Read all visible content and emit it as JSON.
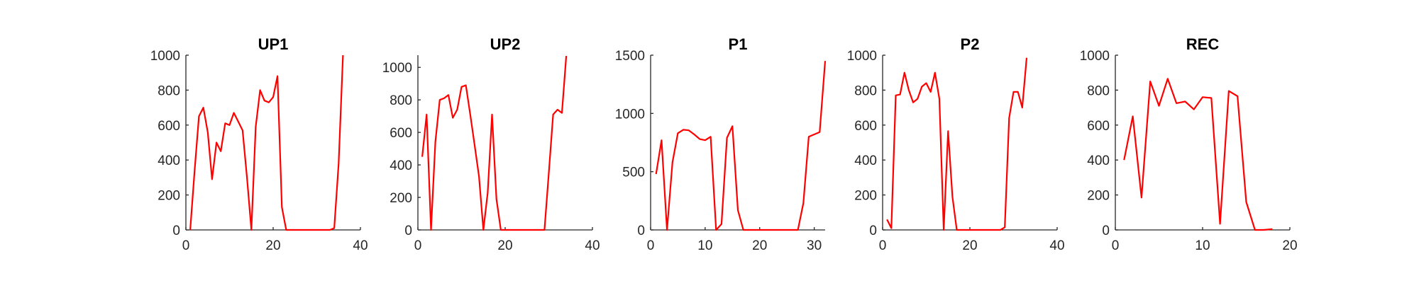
{
  "chart_data": [
    {
      "type": "line",
      "title": "UP1",
      "xlim": [
        0,
        40
      ],
      "ylim": [
        0,
        1000
      ],
      "xticks": [
        0,
        20,
        40
      ],
      "yticks": [
        0,
        200,
        400,
        600,
        800,
        1000
      ],
      "series": [
        {
          "color": "#ff0000",
          "x": [
            1,
            2,
            3,
            4,
            5,
            6,
            7,
            8,
            9,
            10,
            11,
            12,
            13,
            14,
            15,
            16,
            17,
            18,
            19,
            20,
            21,
            22,
            23,
            24,
            25,
            26,
            27,
            28,
            29,
            30,
            31,
            32,
            33,
            34,
            35,
            36
          ],
          "y": [
            0,
            340,
            650,
            700,
            560,
            290,
            500,
            450,
            610,
            600,
            670,
            620,
            570,
            300,
            0,
            590,
            800,
            740,
            730,
            760,
            880,
            130,
            0,
            0,
            0,
            0,
            0,
            0,
            0,
            0,
            0,
            0,
            0,
            10,
            380,
            1000
          ]
        }
      ]
    },
    {
      "type": "line",
      "title": "UP2",
      "xlim": [
        0,
        40
      ],
      "ylim": [
        0,
        1075
      ],
      "xticks": [
        0,
        20,
        40
      ],
      "yticks": [
        0,
        200,
        400,
        600,
        800,
        1000
      ],
      "series": [
        {
          "color": "#ff0000",
          "x": [
            1,
            2,
            3,
            4,
            5,
            6,
            7,
            8,
            9,
            10,
            11,
            12,
            13,
            14,
            15,
            16,
            17,
            18,
            19,
            20,
            21,
            22,
            23,
            24,
            25,
            26,
            27,
            28,
            29,
            30,
            31,
            32,
            33,
            34
          ],
          "y": [
            450,
            710,
            0,
            540,
            800,
            810,
            830,
            690,
            740,
            880,
            890,
            710,
            520,
            330,
            0,
            230,
            710,
            190,
            0,
            0,
            0,
            0,
            0,
            0,
            0,
            0,
            0,
            0,
            0,
            350,
            710,
            740,
            720,
            1070
          ]
        }
      ]
    },
    {
      "type": "line",
      "title": "P1",
      "xlim": [
        0,
        32
      ],
      "ylim": [
        0,
        1500
      ],
      "xticks": [
        0,
        10,
        20,
        30
      ],
      "yticks": [
        0,
        500,
        1000,
        1500
      ],
      "series": [
        {
          "color": "#ff0000",
          "x": [
            1,
            2,
            3,
            4,
            5,
            6,
            7,
            8,
            9,
            10,
            11,
            12,
            13,
            14,
            15,
            16,
            17,
            18,
            19,
            20,
            21,
            22,
            23,
            24,
            25,
            26,
            27,
            28,
            29,
            30,
            31,
            32
          ],
          "y": [
            480,
            770,
            0,
            580,
            830,
            860,
            855,
            820,
            780,
            770,
            800,
            0,
            50,
            790,
            890,
            170,
            0,
            0,
            0,
            0,
            0,
            0,
            0,
            0,
            0,
            0,
            0,
            230,
            800,
            820,
            840,
            1450
          ]
        }
      ]
    },
    {
      "type": "line",
      "title": "P2",
      "xlim": [
        0,
        40
      ],
      "ylim": [
        0,
        1000
      ],
      "xticks": [
        0,
        20,
        40
      ],
      "yticks": [
        0,
        200,
        400,
        600,
        800,
        1000
      ],
      "series": [
        {
          "color": "#ff0000",
          "x": [
            1,
            2,
            3,
            4,
            5,
            6,
            7,
            8,
            9,
            10,
            11,
            12,
            13,
            14,
            15,
            16,
            17,
            18,
            19,
            20,
            21,
            22,
            23,
            24,
            25,
            26,
            27,
            28,
            29,
            30,
            31,
            32,
            33
          ],
          "y": [
            60,
            10,
            770,
            775,
            900,
            800,
            730,
            750,
            820,
            840,
            790,
            900,
            750,
            0,
            565,
            190,
            0,
            0,
            0,
            0,
            0,
            0,
            0,
            0,
            0,
            0,
            0,
            15,
            640,
            790,
            790,
            700,
            985
          ]
        }
      ]
    },
    {
      "type": "line",
      "title": "REC",
      "xlim": [
        0,
        20
      ],
      "ylim": [
        0,
        1000
      ],
      "xticks": [
        0,
        10,
        20
      ],
      "yticks": [
        0,
        200,
        400,
        600,
        800,
        1000
      ],
      "series": [
        {
          "color": "#ff0000",
          "x": [
            1,
            2,
            3,
            4,
            5,
            6,
            7,
            8,
            9,
            10,
            11,
            12,
            13,
            14,
            15,
            16,
            17,
            18
          ],
          "y": [
            400,
            650,
            185,
            850,
            710,
            865,
            725,
            735,
            690,
            760,
            755,
            35,
            795,
            765,
            160,
            0,
            0,
            5
          ]
        }
      ]
    }
  ]
}
